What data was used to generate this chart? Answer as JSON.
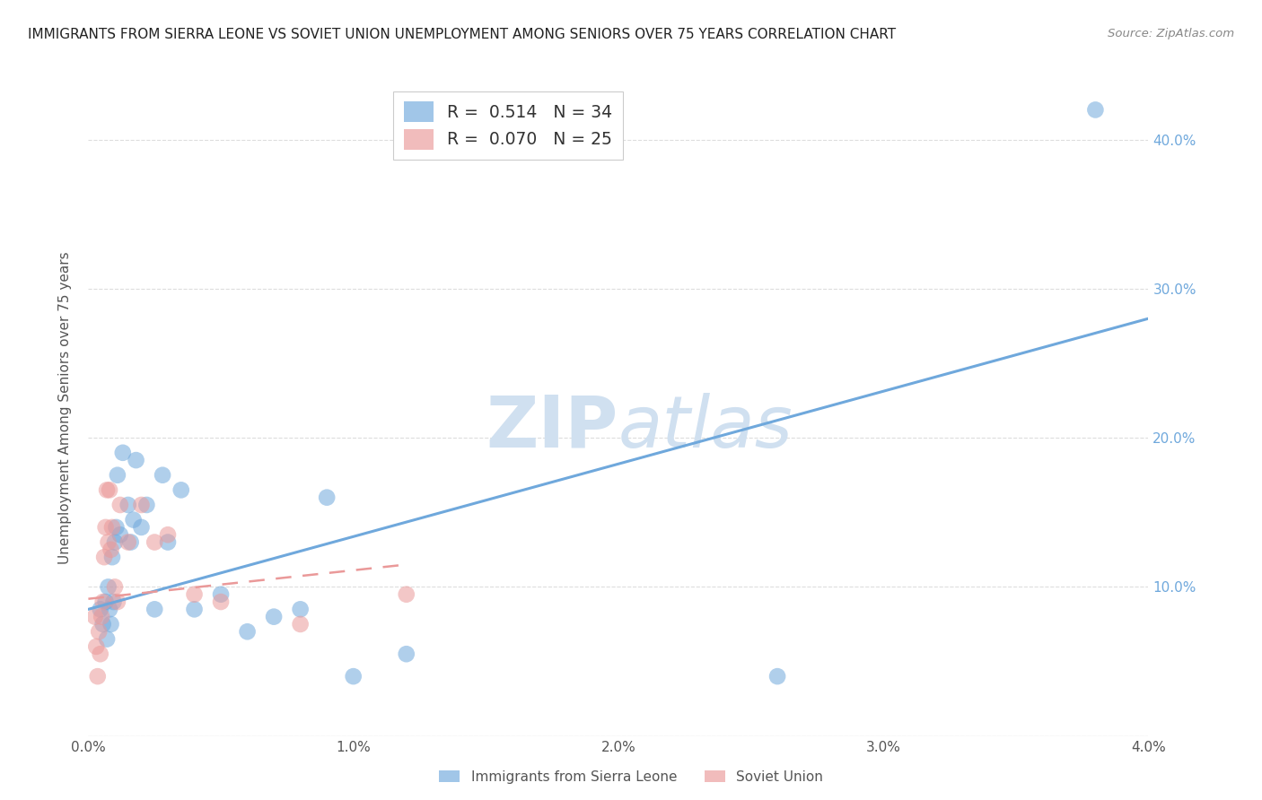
{
  "title": "IMMIGRANTS FROM SIERRA LEONE VS SOVIET UNION UNEMPLOYMENT AMONG SENIORS OVER 75 YEARS CORRELATION CHART",
  "source": "Source: ZipAtlas.com",
  "ylabel": "Unemployment Among Seniors over 75 years",
  "xlim": [
    0,
    0.04
  ],
  "ylim": [
    0,
    0.44
  ],
  "yticks": [
    0.0,
    0.1,
    0.2,
    0.3,
    0.4
  ],
  "xticks": [
    0.0,
    0.01,
    0.02,
    0.03,
    0.04
  ],
  "xticklabels": [
    "0.0%",
    "1.0%",
    "2.0%",
    "3.0%",
    "4.0%"
  ],
  "right_yticklabels": [
    "",
    "10.0%",
    "20.0%",
    "30.0%",
    "40.0%"
  ],
  "sierra_leone_color": "#6fa8dc",
  "soviet_union_color": "#ea9999",
  "sierra_leone_R": 0.514,
  "sierra_leone_N": 34,
  "soviet_union_R": 0.07,
  "soviet_union_N": 25,
  "sierra_leone_x": [
    0.00045,
    0.00055,
    0.00065,
    0.0007,
    0.00075,
    0.0008,
    0.00085,
    0.0009,
    0.00095,
    0.001,
    0.00105,
    0.0011,
    0.0012,
    0.0013,
    0.0015,
    0.0016,
    0.0017,
    0.0018,
    0.002,
    0.0022,
    0.0025,
    0.0028,
    0.003,
    0.0035,
    0.004,
    0.005,
    0.006,
    0.007,
    0.008,
    0.009,
    0.01,
    0.012,
    0.026,
    0.038
  ],
  "sierra_leone_y": [
    0.085,
    0.075,
    0.09,
    0.065,
    0.1,
    0.085,
    0.075,
    0.12,
    0.09,
    0.13,
    0.14,
    0.175,
    0.135,
    0.19,
    0.155,
    0.13,
    0.145,
    0.185,
    0.14,
    0.155,
    0.085,
    0.175,
    0.13,
    0.165,
    0.085,
    0.095,
    0.07,
    0.08,
    0.085,
    0.16,
    0.04,
    0.055,
    0.04,
    0.42
  ],
  "soviet_union_x": [
    0.00025,
    0.0003,
    0.00035,
    0.0004,
    0.00045,
    0.0005,
    0.00055,
    0.0006,
    0.00065,
    0.0007,
    0.00075,
    0.0008,
    0.00085,
    0.0009,
    0.001,
    0.0011,
    0.0012,
    0.0015,
    0.002,
    0.0025,
    0.003,
    0.004,
    0.005,
    0.008,
    0.012
  ],
  "soviet_union_y": [
    0.08,
    0.06,
    0.04,
    0.07,
    0.055,
    0.08,
    0.09,
    0.12,
    0.14,
    0.165,
    0.13,
    0.165,
    0.125,
    0.14,
    0.1,
    0.09,
    0.155,
    0.13,
    0.155,
    0.13,
    0.135,
    0.095,
    0.09,
    0.075,
    0.095
  ],
  "background_color": "#ffffff",
  "grid_color": "#dddddd",
  "watermark_color": "#d0e0f0",
  "sl_line_x": [
    0.0,
    0.04
  ],
  "sl_line_y": [
    0.085,
    0.28
  ],
  "su_line_x": [
    0.0,
    0.012
  ],
  "su_line_y": [
    0.092,
    0.115
  ]
}
